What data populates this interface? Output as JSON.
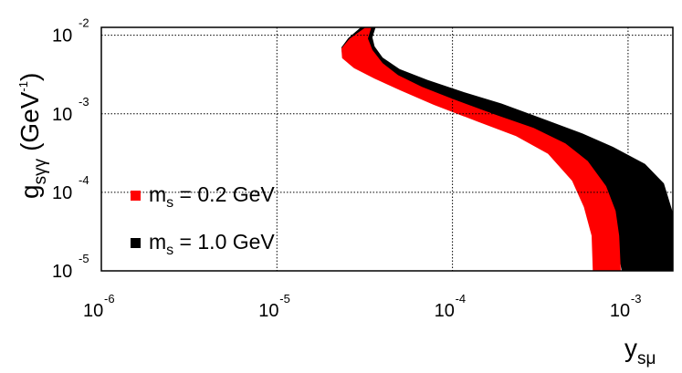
{
  "chart_data": {
    "type": "area",
    "x_scale": "log",
    "y_scale": "log",
    "xlim": [
      1e-06,
      0.0018
    ],
    "ylim": [
      1e-05,
      0.0126
    ],
    "grid": true,
    "grid_style": "dotted",
    "legend_position": "lower-left",
    "xlabel": {
      "main": "y",
      "sub": "sμ"
    },
    "ylabel": {
      "main": "g",
      "sub": "sγγ",
      "unit": "(GeV",
      "unit_exp": "-1",
      "close": ")"
    },
    "x_ticks": [
      {
        "value": 1e-06,
        "base": "10",
        "exp": "-6"
      },
      {
        "value": 1e-05,
        "base": "10",
        "exp": "-5"
      },
      {
        "value": 0.0001,
        "base": "10",
        "exp": "-4"
      },
      {
        "value": 0.001,
        "base": "10",
        "exp": "-3"
      }
    ],
    "y_ticks": [
      {
        "value": 1e-05,
        "base": "10",
        "exp": "-5"
      },
      {
        "value": 0.0001,
        "base": "10",
        "exp": "-4"
      },
      {
        "value": 0.001,
        "base": "10",
        "exp": "-3"
      },
      {
        "value": 0.01,
        "base": "10",
        "exp": "-2"
      }
    ],
    "series": [
      {
        "name": "m_s = 0.2 GeV",
        "legend": {
          "main": "m",
          "sub": "s",
          "rest": " = 0.2 GeV"
        },
        "color": "#ff0000",
        "band_left": [
          [
            3.2e-05,
            0.0126
          ],
          [
            2.6e-05,
            0.0091
          ],
          [
            2.33e-05,
            0.0068
          ],
          [
            2.35e-05,
            0.0051
          ],
          [
            2.75e-05,
            0.0038
          ],
          [
            3.6e-05,
            0.0028
          ],
          [
            5e-05,
            0.002
          ],
          [
            7.8e-05,
            0.0013
          ],
          [
            0.000138,
            0.0008
          ],
          [
            0.00023,
            0.00052
          ],
          [
            0.00035,
            0.00031
          ],
          [
            0.00048,
            0.00014
          ],
          [
            0.00056,
            6.5e-05
          ],
          [
            0.00062,
            2.8e-05
          ],
          [
            0.00063,
            1e-05
          ]
        ],
        "band_right": [
          [
            0.00091,
            1e-05
          ],
          [
            0.00089,
            2.8e-05
          ],
          [
            0.00085,
            5.8e-05
          ],
          [
            0.00075,
            0.00012
          ],
          [
            0.00059,
            0.00025
          ],
          [
            0.00044,
            0.00042
          ],
          [
            0.00029,
            0.00066
          ],
          [
            0.00017,
            0.001
          ],
          [
            0.0001,
            0.00155
          ],
          [
            6.7e-05,
            0.0022
          ],
          [
            4.9e-05,
            0.0031
          ],
          [
            4e-05,
            0.0044
          ],
          [
            3.5e-05,
            0.0065
          ],
          [
            3.3e-05,
            0.0091
          ],
          [
            3.45e-05,
            0.0126
          ]
        ]
      },
      {
        "name": "m_s = 1.0 GeV",
        "legend": {
          "main": "m",
          "sub": "s",
          "rest": " = 1.0 GeV"
        },
        "color": "#000000",
        "band_left": [
          [
            3e-05,
            0.0126
          ],
          [
            2.55e-05,
            0.0092
          ],
          [
            2.33e-05,
            0.007
          ],
          [
            2.36e-05,
            0.0053
          ],
          [
            2.8e-05,
            0.0039
          ],
          [
            3.7e-05,
            0.0029
          ],
          [
            5.3e-05,
            0.0021
          ],
          [
            8.5e-05,
            0.00135
          ],
          [
            0.00016,
            0.00083
          ],
          [
            0.00028,
            0.00054
          ],
          [
            0.00045,
            0.00033
          ],
          [
            0.00062,
            0.00016
          ],
          [
            0.00073,
            8e-05
          ],
          [
            0.00083,
            3.5e-05
          ],
          [
            0.00092,
            1e-05
          ]
        ],
        "band_right": [
          [
            0.0018,
            1e-05
          ],
          [
            0.0018,
            5.5e-05
          ],
          [
            0.0016,
            0.00013
          ],
          [
            0.00125,
            0.00023
          ],
          [
            0.00082,
            0.00038
          ],
          [
            0.00055,
            0.00056
          ],
          [
            0.00032,
            0.00088
          ],
          [
            0.00019,
            0.00135
          ],
          [
            0.000115,
            0.0019
          ],
          [
            7.2e-05,
            0.0027
          ],
          [
            5e-05,
            0.0037
          ],
          [
            4e-05,
            0.0052
          ],
          [
            3.6e-05,
            0.0072
          ],
          [
            3.5e-05,
            0.0094
          ],
          [
            3.65e-05,
            0.0126
          ]
        ]
      }
    ]
  }
}
